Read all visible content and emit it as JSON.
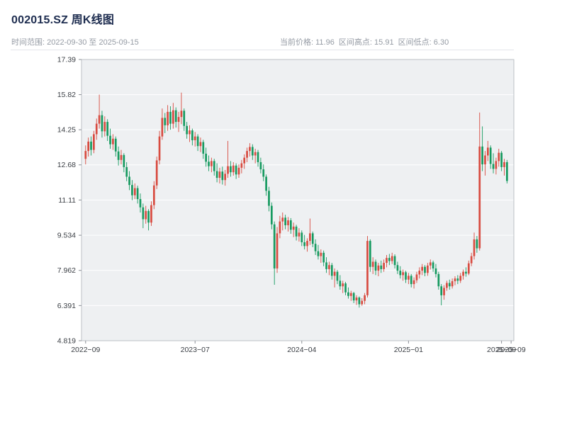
{
  "header": {
    "title": "002015.SZ 周K线图",
    "subtitle_left": "时间范围: 2022-09-30 至 2025-09-15",
    "subtitle_right": "当前价格: 11.96  区间高点: 15.91  区间低点: 6.30"
  },
  "chart_data": {
    "type": "candlestick",
    "title": "002015.SZ 周K线图",
    "symbol": "002015.SZ",
    "interval": "weekly",
    "start_date": "2022-09-30",
    "end_date": "2025-09-15",
    "current_price": 11.96,
    "range_high": 15.91,
    "range_low": 6.3,
    "ylim": [
      4.819,
      17.39
    ],
    "y_ticks": [
      "17.39",
      "15.82",
      "14.25",
      "12.68",
      "11.11",
      "9.534",
      "7.962",
      "6.391",
      "4.819"
    ],
    "x_ticks": [
      {
        "i": 0,
        "label": "2022−09"
      },
      {
        "i": 40,
        "label": "2023−07"
      },
      {
        "i": 79,
        "label": "2024−04"
      },
      {
        "i": 118,
        "label": "2025−01"
      },
      {
        "i": 152,
        "label": "2025−09"
      },
      {
        "i": 155.5,
        "label": "2025−09"
      }
    ],
    "up_color": "#d84b40",
    "down_color": "#169a60",
    "plot_bg": "#eef0f2",
    "grid_color": "#ffffff",
    "frame_color": "#bcc0c6",
    "candles": [
      [
        12.95,
        13.55,
        12.7,
        13.3
      ],
      [
        13.3,
        13.9,
        13.05,
        13.72
      ],
      [
        13.72,
        13.95,
        13.1,
        13.35
      ],
      [
        13.35,
        14.2,
        13.2,
        14.05
      ],
      [
        14.05,
        14.75,
        13.8,
        14.52
      ],
      [
        14.52,
        15.82,
        14.3,
        14.9
      ],
      [
        14.9,
        15.1,
        13.9,
        14.18
      ],
      [
        14.18,
        14.85,
        13.95,
        14.6
      ],
      [
        14.6,
        14.72,
        13.75,
        13.98
      ],
      [
        13.98,
        14.3,
        13.4,
        13.6
      ],
      [
        13.6,
        14.05,
        13.35,
        13.85
      ],
      [
        13.85,
        13.95,
        13.05,
        13.28
      ],
      [
        13.28,
        13.5,
        12.65,
        12.9
      ],
      [
        12.9,
        13.35,
        12.7,
        13.12
      ],
      [
        13.12,
        13.2,
        12.35,
        12.58
      ],
      [
        12.58,
        12.8,
        11.95,
        12.15
      ],
      [
        12.15,
        12.4,
        11.55,
        11.78
      ],
      [
        11.78,
        12.0,
        11.1,
        11.32
      ],
      [
        11.32,
        11.85,
        11.15,
        11.64
      ],
      [
        11.64,
        11.75,
        10.95,
        11.15
      ],
      [
        11.15,
        11.4,
        10.55,
        10.78
      ],
      [
        10.78,
        10.95,
        9.85,
        10.25
      ],
      [
        10.25,
        10.85,
        10.05,
        10.62
      ],
      [
        10.62,
        10.7,
        9.75,
        10.1
      ],
      [
        10.1,
        11.05,
        9.95,
        10.88
      ],
      [
        10.88,
        11.95,
        10.7,
        11.76
      ],
      [
        11.76,
        13.05,
        11.6,
        12.88
      ],
      [
        12.88,
        14.2,
        12.7,
        13.95
      ],
      [
        13.95,
        15.2,
        13.8,
        14.78
      ],
      [
        14.78,
        15.0,
        14.1,
        14.45
      ],
      [
        14.45,
        15.35,
        14.2,
        15.05
      ],
      [
        15.05,
        15.3,
        14.25,
        14.52
      ],
      [
        14.52,
        15.45,
        14.3,
        15.12
      ],
      [
        15.12,
        15.25,
        14.35,
        14.6
      ],
      [
        14.6,
        15.05,
        14.15,
        14.82
      ],
      [
        14.82,
        15.91,
        14.5,
        15.1
      ],
      [
        15.1,
        15.2,
        14.2,
        14.42
      ],
      [
        14.42,
        14.6,
        13.85,
        14.05
      ],
      [
        14.05,
        14.45,
        13.7,
        14.22
      ],
      [
        14.22,
        14.3,
        13.55,
        13.78
      ],
      [
        13.78,
        14.15,
        13.5,
        13.95
      ],
      [
        13.95,
        14.05,
        13.3,
        13.52
      ],
      [
        13.52,
        13.9,
        13.25,
        13.7
      ],
      [
        13.7,
        13.8,
        12.95,
        13.18
      ],
      [
        13.18,
        13.45,
        12.6,
        12.82
      ],
      [
        12.82,
        13.1,
        12.4,
        12.62
      ],
      [
        12.62,
        13.0,
        12.35,
        12.85
      ],
      [
        12.85,
        12.95,
        12.2,
        12.4
      ],
      [
        12.4,
        12.75,
        11.9,
        12.1
      ],
      [
        12.1,
        12.55,
        11.85,
        12.38
      ],
      [
        12.38,
        12.6,
        11.8,
        12.0
      ],
      [
        12.0,
        12.45,
        11.75,
        12.28
      ],
      [
        12.28,
        13.75,
        12.1,
        12.62
      ],
      [
        12.62,
        12.85,
        12.15,
        12.35
      ],
      [
        12.35,
        12.8,
        12.2,
        12.65
      ],
      [
        12.65,
        12.75,
        12.05,
        12.25
      ],
      [
        12.25,
        12.7,
        12.1,
        12.55
      ],
      [
        12.55,
        12.9,
        12.3,
        12.75
      ],
      [
        12.75,
        13.15,
        12.5,
        13.0
      ],
      [
        13.0,
        13.45,
        12.8,
        13.3
      ],
      [
        13.3,
        13.65,
        13.05,
        13.48
      ],
      [
        13.48,
        13.6,
        12.9,
        13.1
      ],
      [
        13.1,
        13.4,
        12.75,
        13.25
      ],
      [
        13.25,
        13.35,
        12.6,
        12.8
      ],
      [
        12.8,
        13.0,
        12.3,
        12.48
      ],
      [
        12.48,
        12.7,
        11.95,
        12.15
      ],
      [
        12.15,
        12.25,
        11.3,
        11.52
      ],
      [
        11.52,
        11.7,
        10.6,
        10.85
      ],
      [
        10.85,
        11.0,
        9.8,
        10.02
      ],
      [
        10.02,
        10.15,
        7.32,
        8.05
      ],
      [
        8.05,
        9.9,
        7.85,
        9.62
      ],
      [
        9.62,
        10.4,
        9.4,
        10.15
      ],
      [
        10.15,
        10.55,
        9.75,
        10.32
      ],
      [
        10.32,
        10.45,
        9.8,
        9.98
      ],
      [
        9.98,
        10.35,
        9.7,
        10.2
      ],
      [
        10.2,
        10.3,
        9.6,
        9.78
      ],
      [
        9.78,
        10.1,
        9.45,
        9.92
      ],
      [
        9.92,
        10.0,
        9.3,
        9.48
      ],
      [
        9.48,
        9.85,
        9.25,
        9.65
      ],
      [
        9.65,
        9.75,
        9.05,
        9.22
      ],
      [
        9.22,
        9.55,
        8.9,
        9.05
      ],
      [
        9.05,
        9.4,
        8.8,
        9.28
      ],
      [
        9.28,
        10.28,
        9.1,
        9.62
      ],
      [
        9.62,
        9.7,
        9.0,
        9.15
      ],
      [
        9.15,
        9.35,
        8.65,
        8.82
      ],
      [
        8.82,
        9.1,
        8.45,
        8.6
      ],
      [
        8.6,
        8.9,
        8.3,
        8.75
      ],
      [
        8.75,
        8.85,
        8.15,
        8.32
      ],
      [
        8.32,
        8.55,
        7.85,
        8.02
      ],
      [
        8.02,
        8.35,
        7.75,
        8.2
      ],
      [
        8.2,
        8.3,
        7.55,
        7.72
      ],
      [
        7.72,
        8.05,
        7.2,
        7.9
      ],
      [
        7.9,
        7.98,
        7.35,
        7.5
      ],
      [
        7.5,
        7.75,
        7.1,
        7.25
      ],
      [
        7.25,
        7.5,
        6.95,
        7.38
      ],
      [
        7.38,
        7.45,
        6.85,
        6.98
      ],
      [
        6.98,
        7.2,
        6.7,
        6.82
      ],
      [
        6.82,
        7.05,
        6.6,
        6.95
      ],
      [
        6.95,
        7.0,
        6.5,
        6.62
      ],
      [
        6.62,
        6.85,
        6.42,
        6.75
      ],
      [
        6.75,
        6.8,
        6.3,
        6.45
      ],
      [
        6.45,
        6.72,
        6.38,
        6.6
      ],
      [
        6.6,
        6.95,
        6.45,
        6.85
      ],
      [
        6.85,
        9.5,
        6.75,
        9.28
      ],
      [
        9.28,
        9.35,
        7.9,
        8.12
      ],
      [
        8.12,
        8.55,
        7.8,
        8.35
      ],
      [
        8.35,
        8.45,
        7.75,
        7.95
      ],
      [
        7.95,
        8.3,
        7.7,
        8.18
      ],
      [
        8.18,
        8.4,
        7.85,
        8.02
      ],
      [
        8.02,
        8.45,
        7.9,
        8.3
      ],
      [
        8.3,
        8.65,
        8.1,
        8.52
      ],
      [
        8.52,
        8.7,
        8.2,
        8.38
      ],
      [
        8.38,
        8.75,
        8.25,
        8.6
      ],
      [
        8.6,
        8.68,
        8.05,
        8.2
      ],
      [
        8.2,
        8.35,
        7.8,
        7.95
      ],
      [
        7.95,
        8.15,
        7.6,
        7.75
      ],
      [
        7.75,
        8.0,
        7.5,
        7.88
      ],
      [
        7.88,
        7.95,
        7.4,
        7.55
      ],
      [
        7.55,
        7.85,
        7.35,
        7.72
      ],
      [
        7.72,
        7.8,
        7.2,
        7.35
      ],
      [
        7.35,
        7.65,
        7.15,
        7.52
      ],
      [
        7.52,
        7.9,
        7.4,
        7.78
      ],
      [
        7.78,
        8.1,
        7.6,
        7.95
      ],
      [
        7.95,
        8.25,
        7.75,
        8.12
      ],
      [
        8.12,
        8.2,
        7.7,
        7.85
      ],
      [
        7.85,
        8.3,
        7.72,
        8.18
      ],
      [
        8.18,
        8.45,
        8.0,
        8.32
      ],
      [
        8.32,
        8.4,
        7.9,
        8.05
      ],
      [
        8.05,
        8.25,
        7.65,
        7.8
      ],
      [
        7.8,
        7.9,
        7.1,
        7.25
      ],
      [
        7.25,
        7.35,
        6.4,
        6.85
      ],
      [
        6.85,
        7.3,
        6.65,
        7.18
      ],
      [
        7.18,
        7.5,
        7.05,
        7.4
      ],
      [
        7.4,
        7.55,
        7.1,
        7.25
      ],
      [
        7.25,
        7.6,
        7.15,
        7.48
      ],
      [
        7.48,
        7.7,
        7.3,
        7.6
      ],
      [
        7.6,
        7.75,
        7.35,
        7.5
      ],
      [
        7.5,
        7.85,
        7.4,
        7.72
      ],
      [
        7.72,
        8.0,
        7.55,
        7.9
      ],
      [
        7.9,
        8.1,
        7.68,
        7.82
      ],
      [
        7.82,
        8.4,
        7.75,
        8.28
      ],
      [
        8.28,
        8.75,
        8.15,
        8.6
      ],
      [
        8.6,
        9.65,
        8.45,
        9.35
      ],
      [
        9.35,
        9.5,
        8.75,
        8.95
      ],
      [
        8.95,
        15.02,
        8.85,
        13.5
      ],
      [
        13.5,
        14.4,
        12.4,
        12.7
      ],
      [
        12.7,
        13.3,
        12.2,
        13.1
      ],
      [
        13.1,
        13.75,
        12.85,
        13.45
      ],
      [
        13.45,
        13.55,
        12.5,
        12.72
      ],
      [
        12.72,
        13.2,
        12.3,
        12.5
      ],
      [
        12.5,
        13.0,
        12.25,
        12.85
      ],
      [
        12.85,
        13.4,
        12.6,
        13.22
      ],
      [
        13.22,
        13.3,
        12.4,
        12.58
      ],
      [
        12.58,
        12.95,
        12.2,
        12.8
      ],
      [
        12.8,
        12.9,
        11.85,
        11.96
      ]
    ]
  }
}
